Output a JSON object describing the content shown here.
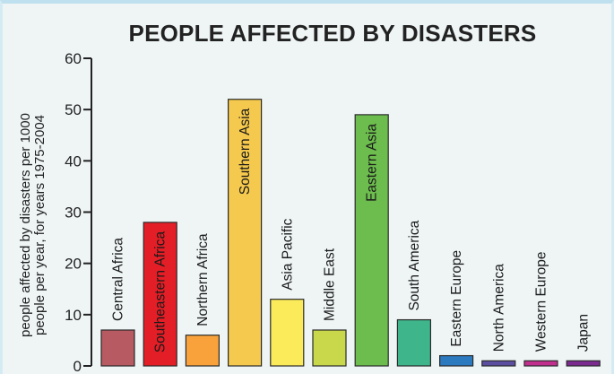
{
  "chart_data": {
    "type": "bar",
    "title": "PEOPLE AFFECTED BY DISASTERS",
    "ylabel_line1": "people affected by disasters per 1000",
    "ylabel_line2": "people per year, for years 1975-2004",
    "xlabel": "",
    "ylim": [
      0,
      60
    ],
    "yticks": [
      0,
      10,
      20,
      30,
      40,
      50,
      60
    ],
    "grid": false,
    "categories": [
      "Central Africa",
      "Southeastern Africa",
      "Northern Africa",
      "Southern Asia",
      "Asia Pacific",
      "Middle East",
      "Eastern Asia",
      "South America",
      "Eastern Europe",
      "North America",
      "Western Europe",
      "Japan"
    ],
    "values": [
      7,
      28,
      6,
      52,
      13,
      7,
      49,
      9,
      2,
      1,
      1,
      1
    ],
    "colors": [
      "#b85a62",
      "#e41e26",
      "#f9a23c",
      "#f4c94d",
      "#fbeb5b",
      "#c8d84a",
      "#6cbd4e",
      "#3fb58c",
      "#2b79bf",
      "#5b4ea1",
      "#c02f8e",
      "#7b2a90"
    ]
  }
}
